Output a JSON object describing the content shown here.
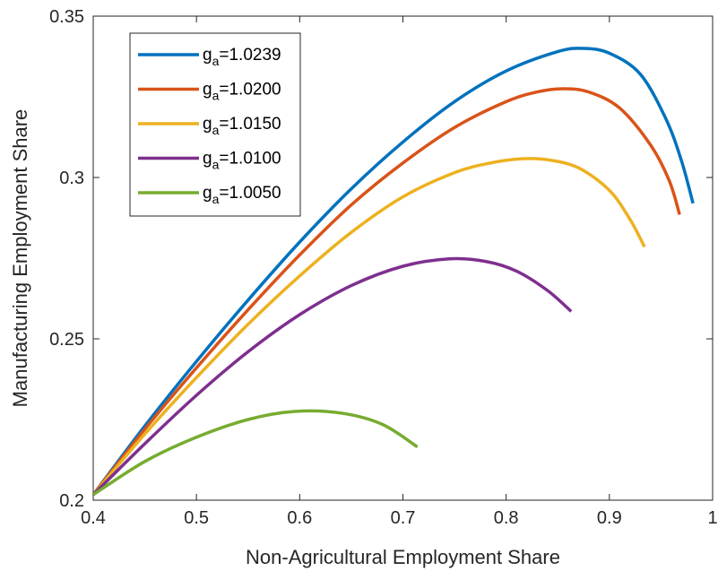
{
  "chart_data": {
    "type": "line",
    "xlabel": "Non-Agricultural Employment Share",
    "ylabel": "Manufacturing Employment Share",
    "xlim": [
      0.4,
      1.0
    ],
    "ylim": [
      0.2,
      0.35
    ],
    "xticks": [
      "0.4",
      "0.5",
      "0.6",
      "0.7",
      "0.8",
      "0.9",
      "1"
    ],
    "yticks": [
      "0.2",
      "0.25",
      "0.3",
      "0.35"
    ],
    "grid": false,
    "legend_position": "top-left",
    "series": [
      {
        "name": "g_a=1.0239",
        "legend_base": "g",
        "legend_sub": "a",
        "legend_value": "=1.0239",
        "color": "#0072BD",
        "points": [
          [
            0.4,
            0.2017
          ],
          [
            0.45,
            0.223
          ],
          [
            0.5,
            0.243
          ],
          [
            0.55,
            0.262
          ],
          [
            0.6,
            0.28
          ],
          [
            0.65,
            0.2965
          ],
          [
            0.7,
            0.311
          ],
          [
            0.75,
            0.3235
          ],
          [
            0.8,
            0.333
          ],
          [
            0.85,
            0.339
          ],
          [
            0.875,
            0.34
          ],
          [
            0.9,
            0.3385
          ],
          [
            0.93,
            0.332
          ],
          [
            0.955,
            0.318
          ],
          [
            0.97,
            0.305
          ],
          [
            0.981,
            0.292
          ]
        ]
      },
      {
        "name": "g_a=1.0200",
        "legend_base": "g",
        "legend_sub": "a",
        "legend_value": "=1.0200",
        "color": "#D95319",
        "points": [
          [
            0.4,
            0.2017
          ],
          [
            0.45,
            0.222
          ],
          [
            0.5,
            0.241
          ],
          [
            0.55,
            0.259
          ],
          [
            0.6,
            0.276
          ],
          [
            0.65,
            0.2915
          ],
          [
            0.7,
            0.3045
          ],
          [
            0.75,
            0.3155
          ],
          [
            0.8,
            0.3235
          ],
          [
            0.83,
            0.3265
          ],
          [
            0.855,
            0.3275
          ],
          [
            0.88,
            0.3265
          ],
          [
            0.91,
            0.3215
          ],
          [
            0.94,
            0.31
          ],
          [
            0.958,
            0.299
          ],
          [
            0.968,
            0.2885
          ]
        ]
      },
      {
        "name": "g_a=1.0150",
        "legend_base": "g",
        "legend_sub": "a",
        "legend_value": "=1.0150",
        "color": "#EDB120",
        "points": [
          [
            0.4,
            0.2017
          ],
          [
            0.45,
            0.2205
          ],
          [
            0.5,
            0.238
          ],
          [
            0.55,
            0.2545
          ],
          [
            0.6,
            0.2695
          ],
          [
            0.65,
            0.283
          ],
          [
            0.7,
            0.294
          ],
          [
            0.75,
            0.3015
          ],
          [
            0.785,
            0.3045
          ],
          [
            0.815,
            0.3058
          ],
          [
            0.84,
            0.3055
          ],
          [
            0.87,
            0.303
          ],
          [
            0.9,
            0.296
          ],
          [
            0.92,
            0.287
          ],
          [
            0.934,
            0.2785
          ]
        ]
      },
      {
        "name": "g_a=1.0100",
        "legend_base": "g",
        "legend_sub": "a",
        "legend_value": "=1.0100",
        "color": "#7E2F8E",
        "points": [
          [
            0.4,
            0.2017
          ],
          [
            0.45,
            0.2175
          ],
          [
            0.5,
            0.2325
          ],
          [
            0.55,
            0.246
          ],
          [
            0.6,
            0.2575
          ],
          [
            0.65,
            0.2665
          ],
          [
            0.7,
            0.2725
          ],
          [
            0.745,
            0.2748
          ],
          [
            0.78,
            0.274
          ],
          [
            0.81,
            0.271
          ],
          [
            0.84,
            0.265
          ],
          [
            0.863,
            0.2585
          ]
        ]
      },
      {
        "name": "g_a=1.0050",
        "legend_base": "g",
        "legend_sub": "a",
        "legend_value": "=1.0050",
        "color": "#77AC30",
        "points": [
          [
            0.4,
            0.2017
          ],
          [
            0.45,
            0.212
          ],
          [
            0.5,
            0.2195
          ],
          [
            0.55,
            0.225
          ],
          [
            0.595,
            0.2275
          ],
          [
            0.64,
            0.227
          ],
          [
            0.68,
            0.2235
          ],
          [
            0.714,
            0.2165
          ]
        ]
      }
    ]
  }
}
